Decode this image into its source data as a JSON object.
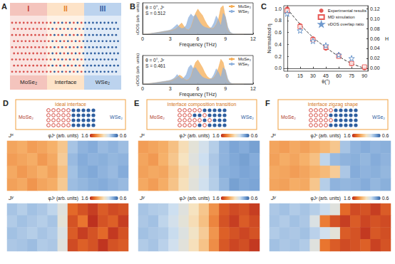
{
  "panel_a": {
    "panel_label": "A",
    "regions": [
      {
        "numeral": "I",
        "name": "MoSe₂",
        "color": "#f4c4bd"
      },
      {
        "numeral": "II",
        "name": "Interface",
        "color": "#fde3c8"
      },
      {
        "numeral": "III",
        "name": "WSe₂",
        "color": "#bcd3ee"
      }
    ]
  },
  "chart_data": [
    {
      "panel_label": "B",
      "type": "area",
      "title": "θ = 0°, Jˣ",
      "subtitle": "S = 0.512",
      "x_label": "Frequency (THz)",
      "y_label": "vDOS (arb. units)",
      "x": [
        0,
        0.25,
        0.5,
        0.75,
        1,
        1.25,
        1.5,
        1.75,
        2,
        2.25,
        2.5,
        2.75,
        3,
        3.25,
        3.5,
        3.75,
        4,
        4.25,
        4.5,
        4.75,
        5,
        5.25,
        5.5,
        5.75,
        6,
        6.25,
        6.5,
        6.75,
        7,
        7.25,
        7.5,
        7.75,
        8,
        8.25,
        8.5,
        8.75,
        9,
        9.25,
        9.5,
        9.75,
        10,
        10.25,
        10.5,
        10.75,
        11
      ],
      "series": [
        {
          "name": "MoSe₂",
          "color": "#f5ad55",
          "values": [
            0,
            0.02,
            0.05,
            0.08,
            0.12,
            0.16,
            0.2,
            0.25,
            0.3,
            0.35,
            0.4,
            0.45,
            0.5,
            0.6,
            0.7,
            0.9,
            1.3,
            1.6,
            1.1,
            0.7,
            0.6,
            1.0,
            2.0,
            3.0,
            3.6,
            3.1,
            2.7,
            2.0,
            1.4,
            1.0,
            0.8,
            0.9,
            1.4,
            2.2,
            3.8,
            4.1,
            2.3,
            0.6,
            0.2,
            0.05,
            0,
            0,
            0,
            0,
            0
          ]
        },
        {
          "name": "WSe₂",
          "color": "#8eb0dc",
          "values": [
            0,
            0.02,
            0.05,
            0.08,
            0.12,
            0.17,
            0.22,
            0.28,
            0.34,
            0.4,
            0.46,
            0.52,
            0.6,
            0.8,
            1.1,
            1.4,
            1.0,
            0.8,
            0.9,
            1.3,
            2.4,
            2.9,
            2.5,
            2.8,
            2.2,
            1.6,
            1.2,
            1.0,
            0.9,
            0.8,
            1.0,
            1.6,
            2.6,
            2.0,
            1.2,
            3.0,
            2.5,
            1.0,
            0.3,
            0.1,
            0.02,
            0,
            0,
            0,
            0
          ]
        }
      ],
      "xlim": [
        0,
        12
      ],
      "xticks": [
        0,
        3,
        6,
        9,
        12
      ],
      "ylim": [
        0,
        4.5
      ],
      "tick_labels": "x",
      "legend": "top-right"
    },
    {
      "type": "area",
      "title": "θ = 0°, Jʸ",
      "subtitle": "S = 0.461",
      "x_label": "Frequency (THz)",
      "y_label": "vDOS (arb. units)",
      "x": [
        0,
        0.25,
        0.5,
        0.75,
        1,
        1.25,
        1.5,
        1.75,
        2,
        2.25,
        2.5,
        2.75,
        3,
        3.25,
        3.5,
        3.75,
        4,
        4.25,
        4.5,
        4.75,
        5,
        5.25,
        5.5,
        5.75,
        6,
        6.25,
        6.5,
        6.75,
        7,
        7.25,
        7.5,
        7.75,
        8,
        8.25,
        8.5,
        8.75,
        9,
        9.25,
        9.5,
        9.75,
        10,
        10.25,
        10.5,
        10.75,
        11
      ],
      "series": [
        {
          "name": "MoSe₂",
          "color": "#f5ad55",
          "values": [
            0,
            0.02,
            0.05,
            0.08,
            0.12,
            0.16,
            0.2,
            0.25,
            0.3,
            0.35,
            0.4,
            0.45,
            0.5,
            0.6,
            0.8,
            1.0,
            1.4,
            1.2,
            0.8,
            0.6,
            0.7,
            1.2,
            2.4,
            3.4,
            3.8,
            3.2,
            2.6,
            1.8,
            1.2,
            0.9,
            0.8,
            1.0,
            1.6,
            2.6,
            3.9,
            3.4,
            1.8,
            0.5,
            0.15,
            0.03,
            0,
            0,
            0,
            0,
            0
          ]
        },
        {
          "name": "WSe₂",
          "color": "#8eb0dc",
          "values": [
            0,
            0.02,
            0.05,
            0.08,
            0.12,
            0.17,
            0.22,
            0.28,
            0.34,
            0.4,
            0.46,
            0.52,
            0.6,
            0.75,
            1.0,
            1.5,
            1.1,
            0.8,
            1.0,
            1.5,
            2.6,
            3.0,
            2.4,
            2.6,
            2.0,
            1.5,
            1.1,
            0.9,
            0.8,
            0.7,
            0.9,
            1.5,
            2.4,
            1.8,
            1.0,
            2.6,
            2.2,
            0.8,
            0.2,
            0.05,
            0,
            0,
            0,
            0,
            0
          ]
        }
      ],
      "xlim": [
        0,
        12
      ],
      "xticks": [
        0,
        3,
        6,
        9,
        12
      ],
      "ylim": [
        0,
        4.5
      ],
      "tick_labels": "x",
      "legend": "top-right"
    },
    {
      "panel_label": "C",
      "type": "scatter",
      "x_label": "θ(°)",
      "y_label": "Normalized η",
      "y2_label": "H",
      "x": [
        0,
        15,
        30,
        45,
        60,
        75,
        90
      ],
      "series": [
        {
          "type": "line",
          "color": "#333333",
          "line_style": "dashed",
          "values": [
            1.0,
            0.74,
            0.52,
            0.35,
            0.2,
            0.08,
            0.0
          ]
        },
        {
          "name": "Experimental results",
          "color": "#e0302a",
          "marker": "circle",
          "values": [
            1.0,
            0.72,
            0.5,
            0.33,
            0.22,
            0.07,
            0.0
          ]
        },
        {
          "name": "MD simulation",
          "color": "#e0302a",
          "marker": "square-open",
          "values": [
            0.97,
            0.7,
            0.48,
            0.35,
            0.2,
            0.08,
            0.02
          ]
        },
        {
          "name": "vDOS overlap ratio",
          "color": "#4a7fc1",
          "marker": "star-open",
          "axis": "y2",
          "values": [
            0.11,
            0.076,
            0.055,
            0.046,
            0.027,
            0.02,
            null
          ]
        }
      ],
      "xlim": [
        -4,
        94
      ],
      "xticks": [
        0,
        15,
        30,
        45,
        60,
        75,
        90
      ],
      "ylim": [
        -0.05,
        1.05
      ],
      "yticks": [
        {
          "value": 0,
          "label": "0.0"
        },
        0.2,
        0.4,
        0.6,
        0.8,
        {
          "value": 1,
          "label": "1.0"
        }
      ],
      "y2lim": [
        -0.006,
        0.126
      ],
      "y2ticks": [
        {
          "value": 0,
          "label": "0.00"
        },
        0.02,
        0.04,
        0.06,
        0.08,
        {
          "value": 0.1,
          "label": "0.10"
        },
        0.12
      ],
      "legend": "top-right"
    }
  ],
  "interface_panels": [
    {
      "panel_label": "D",
      "title": "Ideal interface",
      "left_label": "MoSe₂",
      "right_label": "WSe₂",
      "maps": [
        {
          "type": "heatmap",
          "title": "Jˣ",
          "colorbar": {
            "label": "φJˣ (arb. units)",
            "range": [
              0.6,
              1.6
            ],
            "ticks": [
              1.6,
              0.6
            ]
          },
          "cells": [
            [
              1.3,
              1.28,
              1.32,
              1.3,
              1.27,
              1.2,
              0.85,
              0.8,
              0.78,
              0.82,
              0.8,
              0.83
            ],
            [
              1.32,
              1.3,
              1.28,
              1.33,
              1.29,
              1.18,
              0.82,
              0.78,
              0.8,
              0.79,
              0.81,
              0.8
            ],
            [
              1.29,
              1.33,
              1.3,
              1.27,
              1.31,
              1.22,
              0.84,
              0.79,
              0.77,
              0.8,
              0.82,
              0.78
            ],
            [
              1.31,
              1.29,
              1.34,
              1.3,
              1.28,
              1.19,
              0.83,
              0.81,
              0.79,
              0.78,
              0.8,
              0.82
            ]
          ]
        },
        {
          "type": "heatmap",
          "title": "Jʸ",
          "colorbar": {
            "label": "φJʸ (arb. units)",
            "range": [
              0.6,
              1.6
            ],
            "ticks": [
              1.6,
              0.6
            ]
          },
          "cells": [
            [
              0.85,
              0.88,
              0.84,
              0.86,
              0.9,
              1.0,
              1.45,
              1.5,
              1.55,
              1.48,
              1.52,
              1.5
            ],
            [
              0.87,
              0.84,
              0.86,
              0.88,
              0.85,
              1.02,
              1.5,
              1.42,
              1.58,
              1.5,
              1.47,
              1.55
            ],
            [
              0.84,
              0.86,
              0.88,
              0.85,
              0.87,
              0.98,
              1.48,
              1.55,
              1.5,
              1.45,
              1.56,
              1.5
            ],
            [
              0.86,
              0.85,
              0.83,
              0.87,
              0.86,
              1.0,
              1.52,
              1.47,
              1.5,
              1.57,
              1.5,
              1.48
            ]
          ]
        }
      ]
    },
    {
      "panel_label": "E",
      "title": "Interface composition transition",
      "left_label": "MoSe₂",
      "right_label": "WSe₂",
      "maps": [
        {
          "type": "heatmap",
          "title": "Jˣ",
          "colorbar": {
            "label": "φJˣ (arb. units)",
            "range": [
              0.6,
              1.6
            ],
            "ticks": [
              1.6,
              0.6
            ]
          },
          "cells": [
            [
              1.32,
              1.3,
              1.28,
              1.22,
              1.12,
              1.02,
              0.95,
              0.88,
              0.8,
              0.76,
              0.78,
              0.75
            ],
            [
              1.3,
              1.33,
              1.27,
              1.2,
              1.1,
              1.0,
              0.93,
              0.86,
              0.8,
              0.77,
              0.75,
              0.78
            ],
            [
              1.31,
              1.29,
              1.3,
              1.23,
              1.13,
              1.03,
              0.96,
              0.87,
              0.79,
              0.78,
              0.76,
              0.77
            ],
            [
              1.29,
              1.32,
              1.28,
              1.21,
              1.11,
              1.01,
              0.94,
              0.88,
              0.81,
              0.75,
              0.77,
              0.76
            ]
          ]
        },
        {
          "type": "heatmap",
          "title": "Jʸ",
          "colorbar": {
            "label": "φJʸ (arb. units)",
            "range": [
              0.6,
              1.6
            ],
            "ticks": [
              1.6,
              0.6
            ]
          },
          "cells": [
            [
              0.85,
              0.87,
              0.88,
              0.93,
              1.0,
              1.1,
              1.2,
              1.35,
              1.48,
              1.52,
              1.5,
              1.55
            ],
            [
              0.86,
              0.84,
              0.9,
              0.95,
              1.02,
              1.12,
              1.22,
              1.38,
              1.5,
              1.55,
              1.48,
              1.52
            ],
            [
              0.84,
              0.86,
              0.87,
              0.92,
              0.99,
              1.08,
              1.18,
              1.34,
              1.47,
              1.5,
              1.53,
              1.5
            ],
            [
              0.87,
              0.85,
              0.89,
              0.94,
              1.01,
              1.11,
              1.21,
              1.36,
              1.49,
              1.53,
              1.51,
              1.56
            ]
          ]
        }
      ]
    },
    {
      "panel_label": "F",
      "title": "Interface zigzag shape",
      "left_label": "MoSe₂",
      "right_label": "WSe₂",
      "maps": [
        {
          "type": "heatmap",
          "title": "Jˣ",
          "colorbar": {
            "label": "φJˣ (arb. units)",
            "range": [
              0.6,
              1.6
            ],
            "ticks": [
              1.6,
              0.6
            ]
          },
          "cells": [
            [
              1.3,
              1.32,
              1.29,
              1.31,
              1.28,
              1.25,
              1.2,
              0.85,
              0.8,
              0.78,
              0.8,
              0.79
            ],
            [
              1.31,
              1.28,
              1.3,
              1.27,
              1.22,
              0.9,
              0.82,
              0.8,
              0.79,
              0.81,
              0.78,
              0.8
            ],
            [
              1.29,
              1.3,
              1.32,
              1.3,
              1.27,
              1.24,
              1.18,
              0.86,
              0.78,
              0.8,
              0.79,
              0.81
            ],
            [
              1.3,
              1.31,
              1.28,
              1.29,
              1.2,
              0.88,
              0.8,
              0.81,
              0.8,
              0.78,
              0.81,
              0.79
            ]
          ]
        },
        {
          "type": "heatmap",
          "title": "Jʸ",
          "colorbar": {
            "label": "φJʸ (arb. units)",
            "range": [
              0.6,
              1.6
            ],
            "ticks": [
              1.6,
              0.6
            ]
          },
          "cells": [
            [
              0.86,
              0.84,
              0.87,
              0.85,
              0.88,
              0.92,
              1.0,
              1.45,
              1.52,
              1.5,
              1.55,
              1.48
            ],
            [
              0.85,
              0.87,
              0.84,
              0.86,
              0.98,
              1.4,
              1.5,
              1.55,
              1.48,
              1.53,
              1.5,
              1.52
            ],
            [
              0.87,
              0.85,
              0.86,
              0.84,
              0.89,
              0.94,
              1.02,
              1.48,
              1.5,
              1.56,
              1.49,
              1.51
            ],
            [
              0.84,
              0.86,
              0.85,
              0.87,
              1.0,
              1.42,
              1.48,
              1.52,
              1.5,
              1.47,
              1.54,
              1.5
            ]
          ]
        }
      ]
    }
  ]
}
